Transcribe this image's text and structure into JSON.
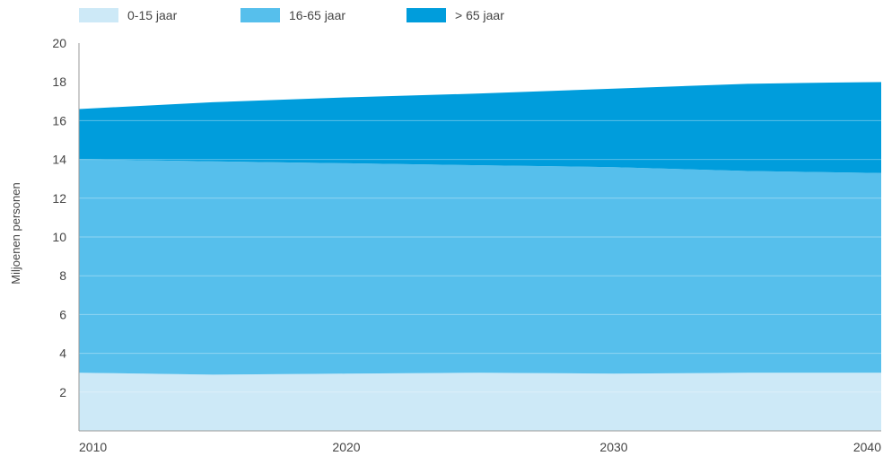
{
  "chart_data": {
    "type": "area",
    "stacked": true,
    "x": [
      2010,
      2015,
      2020,
      2025,
      2030,
      2035,
      2040
    ],
    "series": [
      {
        "name": "0-15 jaar",
        "values": [
          3.0,
          2.9,
          2.95,
          3.0,
          2.95,
          3.0,
          3.0
        ],
        "color": "#cde9f7"
      },
      {
        "name": "16-65 jaar",
        "values": [
          11.0,
          11.0,
          10.85,
          10.7,
          10.65,
          10.4,
          10.3
        ],
        "color": "#56bfec"
      },
      {
        "name": "> 65 jaar",
        "values": [
          2.6,
          3.05,
          3.4,
          3.7,
          4.05,
          4.5,
          4.7
        ],
        "color": "#009ddc"
      }
    ],
    "ylabel": "Miljoenen personen",
    "ylim": [
      0,
      20
    ],
    "yticks": [
      2,
      4,
      6,
      8,
      10,
      12,
      14,
      16,
      18,
      20
    ],
    "xticks": [
      2010,
      2020,
      2030,
      2040
    ],
    "xlim": [
      2010,
      2040
    ],
    "grid": "horizontal",
    "legend_position": "top-left"
  }
}
